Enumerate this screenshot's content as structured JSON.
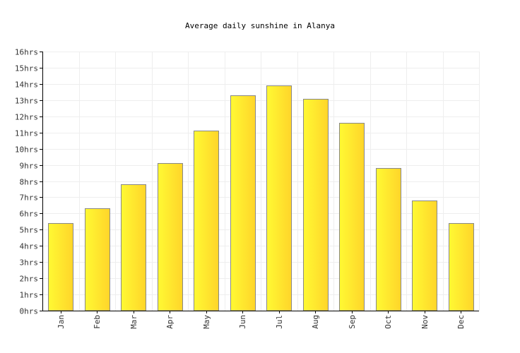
{
  "chart_data": {
    "type": "bar",
    "title": "Average daily sunshine in Alanya",
    "categories": [
      "Jan",
      "Feb",
      "Mar",
      "Apr",
      "May",
      "Jun",
      "Jul",
      "Aug",
      "Sep",
      "Oct",
      "Nov",
      "Dec"
    ],
    "series": [
      {
        "values": [
          5.4,
          6.3,
          7.8,
          9.1,
          11.1,
          13.3,
          13.9,
          13.1,
          11.6,
          8.8,
          6.8,
          5.4
        ]
      }
    ],
    "y_ticks": [
      "0hrs",
      "1hrs",
      "2hrs",
      "3hrs",
      "4hrs",
      "5hrs",
      "6hrs",
      "7hrs",
      "8hrs",
      "9hrs",
      "10hrs",
      "11hrs",
      "12hrs",
      "13hrs",
      "14hrs",
      "15hrs",
      "16hrs"
    ],
    "ylim": [
      0,
      16
    ],
    "grid": true,
    "colors": {
      "bar_light": "#FFF933",
      "bar_dark": "#FFD52A",
      "bar_stroke": "#888888",
      "grid": "#EEEEEE",
      "axis": "#000000"
    }
  }
}
